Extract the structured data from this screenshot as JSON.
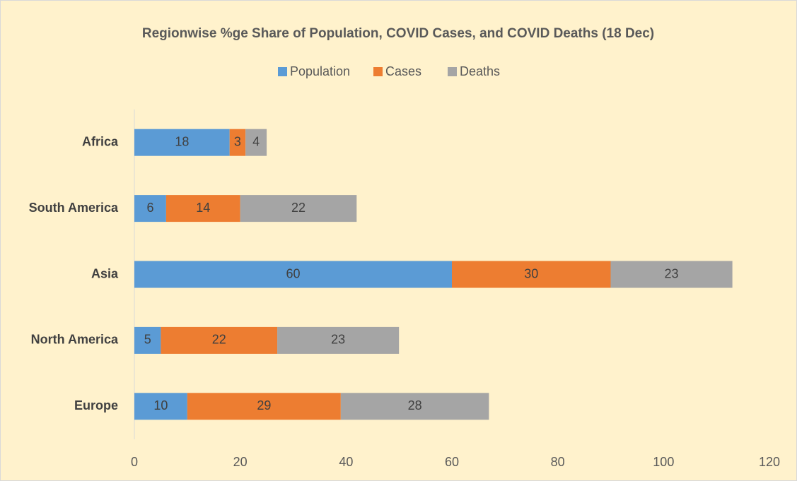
{
  "chart_data": {
    "type": "bar",
    "orientation": "horizontal",
    "stacked": true,
    "title": "Regionwise %ge Share of Population, COVID Cases, and COVID Deaths (18 Dec)",
    "categories": [
      "Europe",
      "North America",
      "Asia",
      "South America",
      "Africa"
    ],
    "series": [
      {
        "name": "Population",
        "color": "#5b9bd5",
        "values": [
          10,
          5,
          60,
          6,
          18
        ]
      },
      {
        "name": "Cases",
        "color": "#ed7d31",
        "values": [
          29,
          22,
          30,
          14,
          3
        ]
      },
      {
        "name": "Deaths",
        "color": "#a5a5a5",
        "values": [
          28,
          23,
          23,
          22,
          4
        ]
      }
    ],
    "xlim": [
      0,
      120
    ],
    "xticks": [
      0,
      20,
      40,
      60,
      80,
      100,
      120
    ],
    "legend": "top",
    "grid": false
  }
}
